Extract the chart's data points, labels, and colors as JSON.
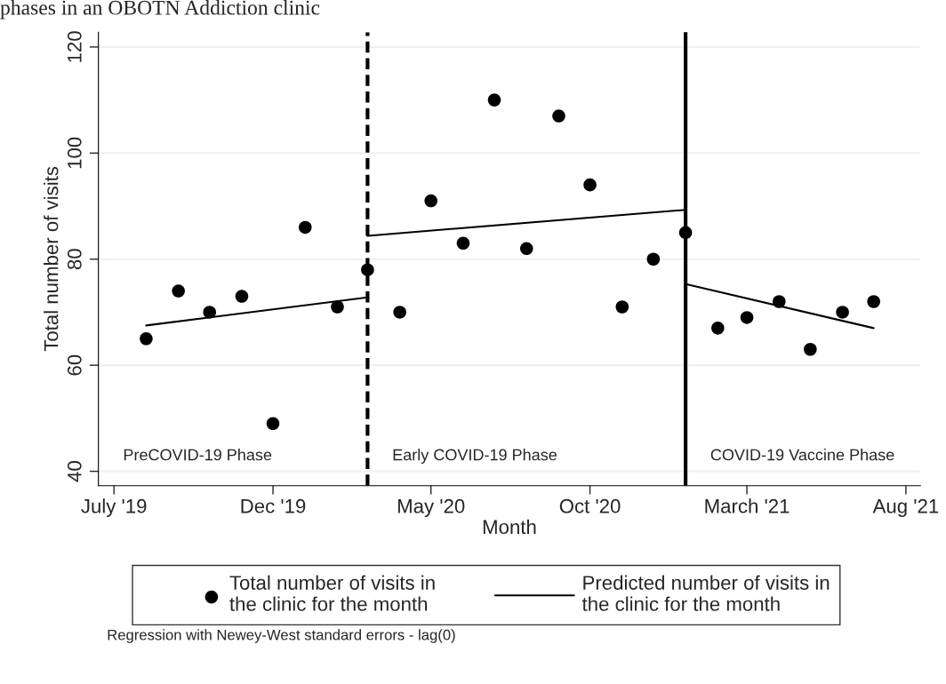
{
  "chart_data": {
    "type": "scatter",
    "title": "phases in an OBOTN Addiction clinic",
    "xlabel": "Month",
    "ylabel": "Total number of visits",
    "x": [
      "2019-08",
      "2019-09",
      "2019-10",
      "2019-11",
      "2019-12",
      "2020-01",
      "2020-02",
      "2020-03",
      "2020-04",
      "2020-05",
      "2020-06",
      "2020-07",
      "2020-08",
      "2020-09",
      "2020-10",
      "2020-11",
      "2020-12",
      "2021-01",
      "2021-02",
      "2021-03",
      "2021-04",
      "2021-05",
      "2021-06",
      "2021-07"
    ],
    "series": [
      {
        "name": "Total number of visits in\nthe clinic for the month",
        "color": "#000000",
        "marker": "circle",
        "values": [
          65,
          74,
          70,
          73,
          49,
          86,
          71,
          78,
          70,
          91,
          83,
          110,
          82,
          107,
          94,
          71,
          80,
          85,
          67,
          69,
          72,
          63,
          70,
          72
        ]
      },
      {
        "name": "Predicted number of visits in\nthe clinic for the month",
        "type": "line",
        "color": "#000000",
        "marker": "none",
        "x": [
          "2019-08",
          "2020-03"
        ],
        "values": [
          67.5,
          72.8
        ]
      },
      {
        "type": "line",
        "color": "#000000",
        "marker": "none",
        "x": [
          "2020-03",
          "2021-01"
        ],
        "values": [
          84.4,
          89.3
        ]
      },
      {
        "type": "line",
        "color": "#000000",
        "marker": "none",
        "x": [
          "2021-01",
          "2021-07"
        ],
        "values": [
          75.3,
          67.0
        ]
      }
    ],
    "xlim": [
      "2019-06-16",
      "2021-08-15"
    ],
    "xticks": [
      {
        "value": "2019-07",
        "label": "July '19"
      },
      {
        "value": "2019-12",
        "label": "Dec '19"
      },
      {
        "value": "2020-05",
        "label": "May '20"
      },
      {
        "value": "2020-10",
        "label": "Oct '20"
      },
      {
        "value": "2021-03",
        "label": "March '21"
      },
      {
        "value": "2021-08",
        "label": "Aug '21"
      }
    ],
    "ylim": [
      37.3,
      122.8
    ],
    "yticks": [
      40,
      60,
      80,
      100,
      120
    ],
    "ref_lines": [
      {
        "axis": "x",
        "value": "2020-03",
        "color": "#000000",
        "line_style": "dashed"
      },
      {
        "axis": "x",
        "value": "2021-01",
        "color": "#000000",
        "line_style": "solid"
      }
    ],
    "annotations": [
      "PreCOVID-19 Phase",
      "Early COVID-19 Phase",
      "COVID-19 Vaccine Phase",
      "Regression with Newey-West standard errors - lag(0)"
    ],
    "grid": "y",
    "legend": "bottom"
  }
}
